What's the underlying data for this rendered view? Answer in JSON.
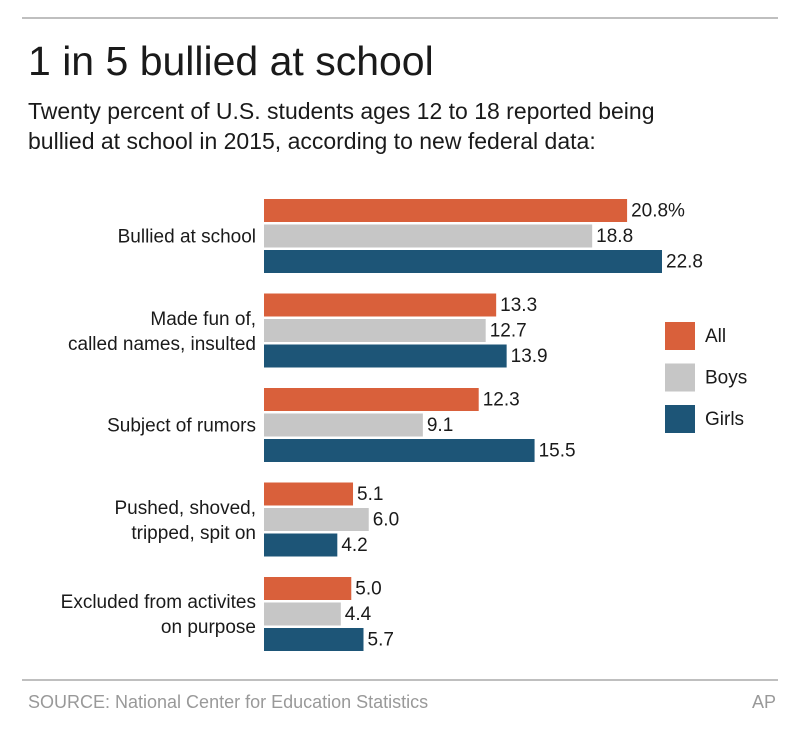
{
  "chart_data": {
    "type": "bar",
    "orientation": "horizontal",
    "title": "1 in 5 bullied at school",
    "subtitle": "Twenty percent of U.S. students ages 12 to 18 reported being\nbullied at school in 2015, according to new federal data:",
    "categories": [
      "Bullied at school",
      "Made fun of,\ncalled names, insulted",
      "Subject of rumors",
      "Pushed, shoved,\ntripped, spit on",
      "Excluded from activites\non purpose"
    ],
    "series": [
      {
        "name": "All",
        "color": "#d9603b",
        "values": [
          20.8,
          13.3,
          12.3,
          5.1,
          5.0
        ],
        "value_labels": [
          "20.8%",
          "13.3",
          "12.3",
          "5.1",
          "5.0"
        ]
      },
      {
        "name": "Boys",
        "color": "#c6c6c6",
        "values": [
          18.8,
          12.7,
          9.1,
          6.0,
          4.4
        ],
        "value_labels": [
          "18.8",
          "12.7",
          "9.1",
          "6.0",
          "4.4"
        ]
      },
      {
        "name": "Girls",
        "color": "#1d5577",
        "values": [
          22.8,
          13.9,
          15.5,
          4.2,
          5.7
        ],
        "value_labels": [
          "22.8",
          "13.9",
          "15.5",
          "4.2",
          "5.7"
        ]
      }
    ],
    "source": "SOURCE: National Center for Education Statistics",
    "credit": "AP"
  }
}
